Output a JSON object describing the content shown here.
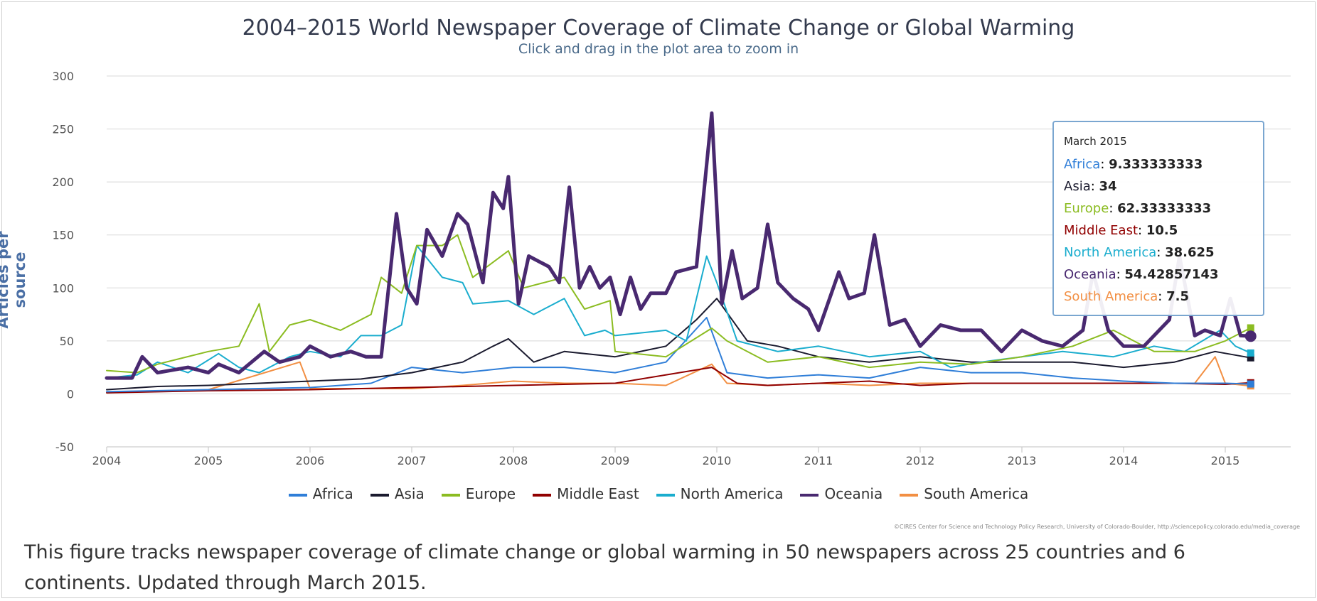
{
  "chart_data": {
    "type": "line",
    "title": "2004–2015 World Newspaper Coverage of Climate Change or Global Warming",
    "subtitle": "Click and drag in the plot area to zoom in",
    "ylabel": "Articles per source",
    "xlabel": "",
    "ylim": [
      -50,
      300
    ],
    "yticks": [
      300,
      250,
      200,
      150,
      100,
      50,
      0,
      -50
    ],
    "xlim": [
      2004,
      2015.3
    ],
    "xticks": [
      "2004",
      "2005",
      "2006",
      "2007",
      "2008",
      "2009",
      "2010",
      "2011",
      "2012",
      "2013",
      "2014",
      "2015"
    ],
    "grid": true,
    "legend_position": "bottom",
    "series": [
      {
        "name": "Africa",
        "color": "#2f7ed8",
        "width": 2,
        "points": [
          [
            2004,
            2
          ],
          [
            2005,
            4
          ],
          [
            2006,
            6
          ],
          [
            2006.6,
            10
          ],
          [
            2007,
            25
          ],
          [
            2007.5,
            20
          ],
          [
            2008,
            25
          ],
          [
            2008.5,
            25
          ],
          [
            2009,
            20
          ],
          [
            2009.5,
            30
          ],
          [
            2009.9,
            72
          ],
          [
            2010.1,
            20
          ],
          [
            2010.5,
            15
          ],
          [
            2011,
            18
          ],
          [
            2011.5,
            15
          ],
          [
            2012,
            25
          ],
          [
            2012.5,
            20
          ],
          [
            2013,
            20
          ],
          [
            2013.5,
            15
          ],
          [
            2014,
            12
          ],
          [
            2014.5,
            10
          ],
          [
            2015,
            10
          ],
          [
            2015.25,
            9.3
          ]
        ]
      },
      {
        "name": "Asia",
        "color": "#1a1a2e",
        "width": 2,
        "points": [
          [
            2004,
            4
          ],
          [
            2004.5,
            7
          ],
          [
            2005,
            8
          ],
          [
            2005.5,
            10
          ],
          [
            2006,
            12
          ],
          [
            2006.5,
            14
          ],
          [
            2007,
            20
          ],
          [
            2007.5,
            30
          ],
          [
            2007.8,
            45
          ],
          [
            2007.95,
            52
          ],
          [
            2008.2,
            30
          ],
          [
            2008.5,
            40
          ],
          [
            2009,
            35
          ],
          [
            2009.5,
            45
          ],
          [
            2009.8,
            70
          ],
          [
            2010,
            90
          ],
          [
            2010.3,
            50
          ],
          [
            2010.6,
            45
          ],
          [
            2011,
            35
          ],
          [
            2011.5,
            30
          ],
          [
            2012,
            35
          ],
          [
            2012.5,
            30
          ],
          [
            2013,
            30
          ],
          [
            2013.5,
            30
          ],
          [
            2014,
            25
          ],
          [
            2014.5,
            30
          ],
          [
            2014.9,
            40
          ],
          [
            2015.25,
            34
          ]
        ]
      },
      {
        "name": "Europe",
        "color": "#8bbc21",
        "width": 2,
        "points": [
          [
            2004,
            22
          ],
          [
            2004.3,
            20
          ],
          [
            2004.5,
            28
          ],
          [
            2005,
            40
          ],
          [
            2005.3,
            45
          ],
          [
            2005.5,
            85
          ],
          [
            2005.6,
            40
          ],
          [
            2005.8,
            65
          ],
          [
            2006,
            70
          ],
          [
            2006.3,
            60
          ],
          [
            2006.6,
            75
          ],
          [
            2006.7,
            110
          ],
          [
            2006.9,
            95
          ],
          [
            2007.05,
            140
          ],
          [
            2007.3,
            140
          ],
          [
            2007.45,
            150
          ],
          [
            2007.6,
            110
          ],
          [
            2007.95,
            135
          ],
          [
            2008.1,
            100
          ],
          [
            2008.5,
            110
          ],
          [
            2008.7,
            80
          ],
          [
            2008.95,
            88
          ],
          [
            2009,
            40
          ],
          [
            2009.5,
            35
          ],
          [
            2009.95,
            62
          ],
          [
            2010.1,
            50
          ],
          [
            2010.5,
            30
          ],
          [
            2011,
            35
          ],
          [
            2011.5,
            25
          ],
          [
            2012,
            30
          ],
          [
            2012.5,
            28
          ],
          [
            2013,
            35
          ],
          [
            2013.5,
            45
          ],
          [
            2013.9,
            60
          ],
          [
            2014.3,
            40
          ],
          [
            2014.7,
            40
          ],
          [
            2015,
            50
          ],
          [
            2015.25,
            62.3
          ]
        ]
      },
      {
        "name": "Middle East",
        "color": "#910000",
        "width": 2,
        "points": [
          [
            2004,
            1
          ],
          [
            2005,
            3
          ],
          [
            2006,
            4
          ],
          [
            2007,
            6
          ],
          [
            2008,
            8
          ],
          [
            2009,
            10
          ],
          [
            2009.95,
            25
          ],
          [
            2010.2,
            10
          ],
          [
            2010.5,
            8
          ],
          [
            2011,
            10
          ],
          [
            2011.5,
            12
          ],
          [
            2012,
            8
          ],
          [
            2012.5,
            10
          ],
          [
            2013,
            10
          ],
          [
            2013.5,
            10
          ],
          [
            2014,
            10
          ],
          [
            2014.5,
            10
          ],
          [
            2015,
            9
          ],
          [
            2015.25,
            10.5
          ]
        ]
      },
      {
        "name": "North America",
        "color": "#1aadce",
        "width": 2,
        "points": [
          [
            2004,
            15
          ],
          [
            2004.3,
            18
          ],
          [
            2004.5,
            30
          ],
          [
            2004.8,
            20
          ],
          [
            2005.1,
            38
          ],
          [
            2005.3,
            25
          ],
          [
            2005.5,
            20
          ],
          [
            2005.8,
            35
          ],
          [
            2006,
            40
          ],
          [
            2006.3,
            35
          ],
          [
            2006.5,
            55
          ],
          [
            2006.7,
            55
          ],
          [
            2006.9,
            65
          ],
          [
            2007.05,
            140
          ],
          [
            2007.3,
            110
          ],
          [
            2007.5,
            105
          ],
          [
            2007.6,
            85
          ],
          [
            2007.95,
            88
          ],
          [
            2008.2,
            75
          ],
          [
            2008.5,
            90
          ],
          [
            2008.7,
            55
          ],
          [
            2008.9,
            60
          ],
          [
            2009,
            55
          ],
          [
            2009.5,
            60
          ],
          [
            2009.7,
            50
          ],
          [
            2009.9,
            130
          ],
          [
            2010,
            105
          ],
          [
            2010.2,
            50
          ],
          [
            2010.6,
            40
          ],
          [
            2011,
            45
          ],
          [
            2011.5,
            35
          ],
          [
            2012,
            40
          ],
          [
            2012.3,
            25
          ],
          [
            2012.6,
            30
          ],
          [
            2013,
            35
          ],
          [
            2013.4,
            40
          ],
          [
            2013.9,
            35
          ],
          [
            2014.3,
            45
          ],
          [
            2014.6,
            40
          ],
          [
            2014.95,
            60
          ],
          [
            2015.1,
            45
          ],
          [
            2015.25,
            38.6
          ]
        ]
      },
      {
        "name": "Oceania",
        "color": "#492970",
        "width": 5,
        "points": [
          [
            2004,
            15
          ],
          [
            2004.25,
            15
          ],
          [
            2004.35,
            35
          ],
          [
            2004.5,
            20
          ],
          [
            2004.8,
            25
          ],
          [
            2005,
            20
          ],
          [
            2005.1,
            28
          ],
          [
            2005.3,
            20
          ],
          [
            2005.55,
            40
          ],
          [
            2005.7,
            30
          ],
          [
            2005.9,
            35
          ],
          [
            2006,
            45
          ],
          [
            2006.2,
            35
          ],
          [
            2006.4,
            40
          ],
          [
            2006.55,
            35
          ],
          [
            2006.7,
            35
          ],
          [
            2006.85,
            170
          ],
          [
            2006.95,
            100
          ],
          [
            2007.05,
            85
          ],
          [
            2007.15,
            155
          ],
          [
            2007.3,
            130
          ],
          [
            2007.45,
            170
          ],
          [
            2007.55,
            160
          ],
          [
            2007.7,
            105
          ],
          [
            2007.8,
            190
          ],
          [
            2007.9,
            175
          ],
          [
            2007.95,
            205
          ],
          [
            2008.05,
            85
          ],
          [
            2008.15,
            130
          ],
          [
            2008.35,
            120
          ],
          [
            2008.45,
            105
          ],
          [
            2008.55,
            195
          ],
          [
            2008.65,
            100
          ],
          [
            2008.75,
            120
          ],
          [
            2008.85,
            100
          ],
          [
            2008.95,
            110
          ],
          [
            2009.05,
            75
          ],
          [
            2009.15,
            110
          ],
          [
            2009.25,
            80
          ],
          [
            2009.35,
            95
          ],
          [
            2009.5,
            95
          ],
          [
            2009.6,
            115
          ],
          [
            2009.8,
            120
          ],
          [
            2009.95,
            265
          ],
          [
            2010.05,
            85
          ],
          [
            2010.15,
            135
          ],
          [
            2010.25,
            90
          ],
          [
            2010.4,
            100
          ],
          [
            2010.5,
            160
          ],
          [
            2010.6,
            105
          ],
          [
            2010.75,
            90
          ],
          [
            2010.9,
            80
          ],
          [
            2011,
            60
          ],
          [
            2011.2,
            115
          ],
          [
            2011.3,
            90
          ],
          [
            2011.45,
            95
          ],
          [
            2011.55,
            150
          ],
          [
            2011.7,
            65
          ],
          [
            2011.85,
            70
          ],
          [
            2012,
            45
          ],
          [
            2012.2,
            65
          ],
          [
            2012.4,
            60
          ],
          [
            2012.6,
            60
          ],
          [
            2012.8,
            40
          ],
          [
            2013,
            60
          ],
          [
            2013.2,
            50
          ],
          [
            2013.4,
            45
          ],
          [
            2013.6,
            60
          ],
          [
            2013.7,
            115
          ],
          [
            2013.85,
            60
          ],
          [
            2014,
            45
          ],
          [
            2014.2,
            45
          ],
          [
            2014.45,
            70
          ],
          [
            2014.55,
            130
          ],
          [
            2014.7,
            55
          ],
          [
            2014.8,
            60
          ],
          [
            2014.95,
            55
          ],
          [
            2015.05,
            90
          ],
          [
            2015.15,
            55
          ],
          [
            2015.25,
            54.4
          ]
        ]
      },
      {
        "name": "South America",
        "color": "#f28f43",
        "width": 2,
        "points": [
          [
            2004,
            1
          ],
          [
            2005,
            4
          ],
          [
            2005.9,
            30
          ],
          [
            2006,
            5
          ],
          [
            2006.5,
            5
          ],
          [
            2007,
            5
          ],
          [
            2007.5,
            8
          ],
          [
            2008,
            12
          ],
          [
            2008.5,
            10
          ],
          [
            2009,
            10
          ],
          [
            2009.5,
            8
          ],
          [
            2009.95,
            28
          ],
          [
            2010.1,
            10
          ],
          [
            2010.5,
            8
          ],
          [
            2011,
            10
          ],
          [
            2011.5,
            8
          ],
          [
            2012,
            10
          ],
          [
            2012.5,
            10
          ],
          [
            2013,
            10
          ],
          [
            2013.5,
            10
          ],
          [
            2014,
            10
          ],
          [
            2014.7,
            10
          ],
          [
            2014.9,
            35
          ],
          [
            2015,
            10
          ],
          [
            2015.25,
            7.5
          ]
        ]
      }
    ]
  },
  "tooltip": {
    "date": "March 2015",
    "rows": [
      {
        "label": "Africa",
        "value": "9.333333333",
        "color": "#2f7ed8"
      },
      {
        "label": "Asia",
        "value": "34",
        "color": "#1a1a2e"
      },
      {
        "label": "Europe",
        "value": "62.33333333",
        "color": "#8bbc21"
      },
      {
        "label": "Middle East",
        "value": "10.5",
        "color": "#910000"
      },
      {
        "label": "North America",
        "value": "38.625",
        "color": "#1aadce"
      },
      {
        "label": "Oceania",
        "value": "54.42857143",
        "color": "#492970"
      },
      {
        "label": "South America",
        "value": "7.5",
        "color": "#f28f43"
      }
    ]
  },
  "credits": "©CIRES Center for Science and Technology Policy Research, University of Colorado-Boulder, http://sciencepolicy.colorado.edu/media_coverage",
  "caption": "This figure tracks newspaper coverage of climate change or global warming in 50 newspapers across 25 countries and 6 continents. Updated through March 2015."
}
